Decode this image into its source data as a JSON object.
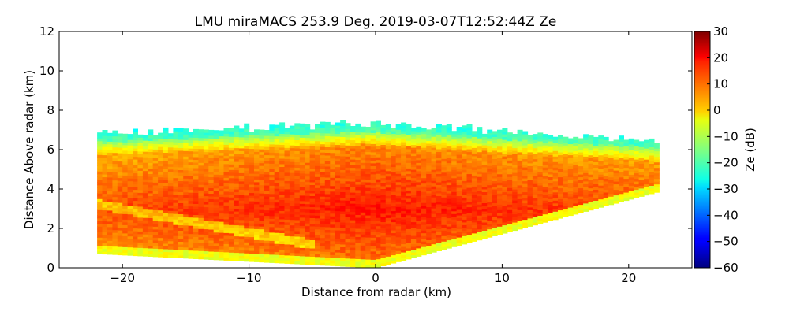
{
  "chart_data": {
    "type": "heatmap",
    "title": "LMU miraMACS 253.9 Deg. 2019-03-07T12:52:44Z  Ze",
    "xlabel": "Distance from radar (km)",
    "ylabel": "Distance Above radar  (km)",
    "xlim": [
      -25,
      25
    ],
    "ylim": [
      0,
      12
    ],
    "x_ticks": [
      -20,
      -10,
      0,
      10,
      20
    ],
    "x_tick_labels": [
      "−20",
      "−10",
      "0",
      "10",
      "20"
    ],
    "y_ticks": [
      0,
      2,
      4,
      6,
      8,
      10,
      12
    ],
    "y_tick_labels": [
      "0",
      "2",
      "4",
      "6",
      "8",
      "10",
      "12"
    ],
    "colorbar": {
      "label": "Ze (dB)",
      "range": [
        -60,
        30
      ],
      "colormap": "jet",
      "ticks": [
        -60,
        -50,
        -40,
        -30,
        -20,
        -10,
        0,
        10,
        20,
        30
      ],
      "tick_labels": [
        "−60",
        "−50",
        "−40",
        "−30",
        "−20",
        "−10",
        "0",
        "10",
        "20",
        "30"
      ]
    },
    "scan": {
      "description": "RHI scan of radar reflectivity",
      "x_extent_km": [
        -22,
        22
      ],
      "left_top_km": 6.7,
      "cloud_top_center_km": 7.3,
      "right_top_km": 6.4,
      "left_bottom_km": 0.8,
      "right_bottom_km": 3.8,
      "core_height_km": 3.0,
      "core_value_dB": 17,
      "upper_value_dB": 5,
      "top_value_dB": -22,
      "edge_value_dB": -15
    }
  }
}
